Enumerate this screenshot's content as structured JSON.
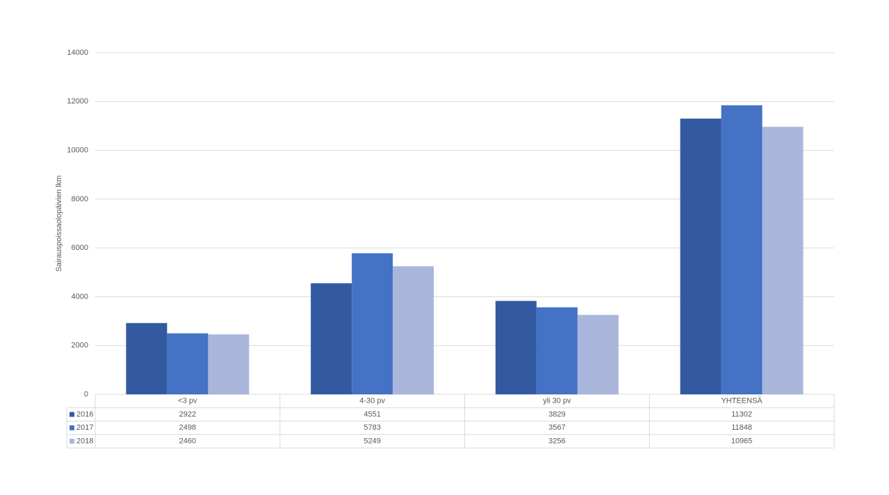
{
  "chart_data": {
    "type": "bar",
    "y_label": "Sairauspoissaolopäivien lkm",
    "categories": [
      "<3 pv",
      "4-30 pv",
      "yli 30 pv",
      "YHTEENSÄ"
    ],
    "series": [
      {
        "name": "2016",
        "color": "#335aa1",
        "values": [
          2922,
          4551,
          3829,
          11302
        ]
      },
      {
        "name": "2017",
        "color": "#4472c4",
        "values": [
          2498,
          5783,
          3567,
          11848
        ]
      },
      {
        "name": "2018",
        "color": "#a9b7dc",
        "values": [
          2460,
          5249,
          3256,
          10965
        ]
      }
    ],
    "ylim": [
      0,
      14000
    ],
    "yticks": [
      0,
      2000,
      4000,
      6000,
      8000,
      10000,
      12000,
      14000
    ],
    "grid": true
  }
}
